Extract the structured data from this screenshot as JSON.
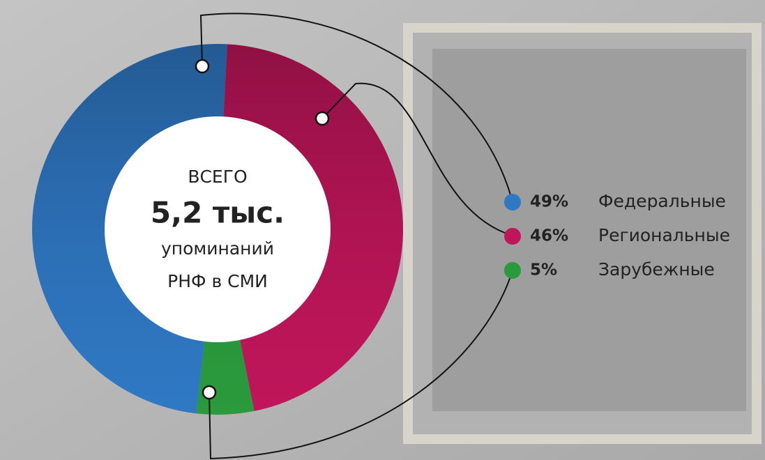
{
  "chart_data": {
    "type": "donut",
    "center_text": [
      "ВСЕГО",
      "5,2 тыс.",
      "упоминаний",
      "РНФ в СМИ"
    ],
    "categories": [
      "Федеральные",
      "Региональные",
      "Зарубежные"
    ],
    "values": [
      49,
      46,
      5
    ],
    "value_labels": [
      "49%",
      "46%",
      "5%"
    ],
    "colors": [
      "#2f78c4",
      "#c0155a",
      "#2a9a3c"
    ]
  }
}
